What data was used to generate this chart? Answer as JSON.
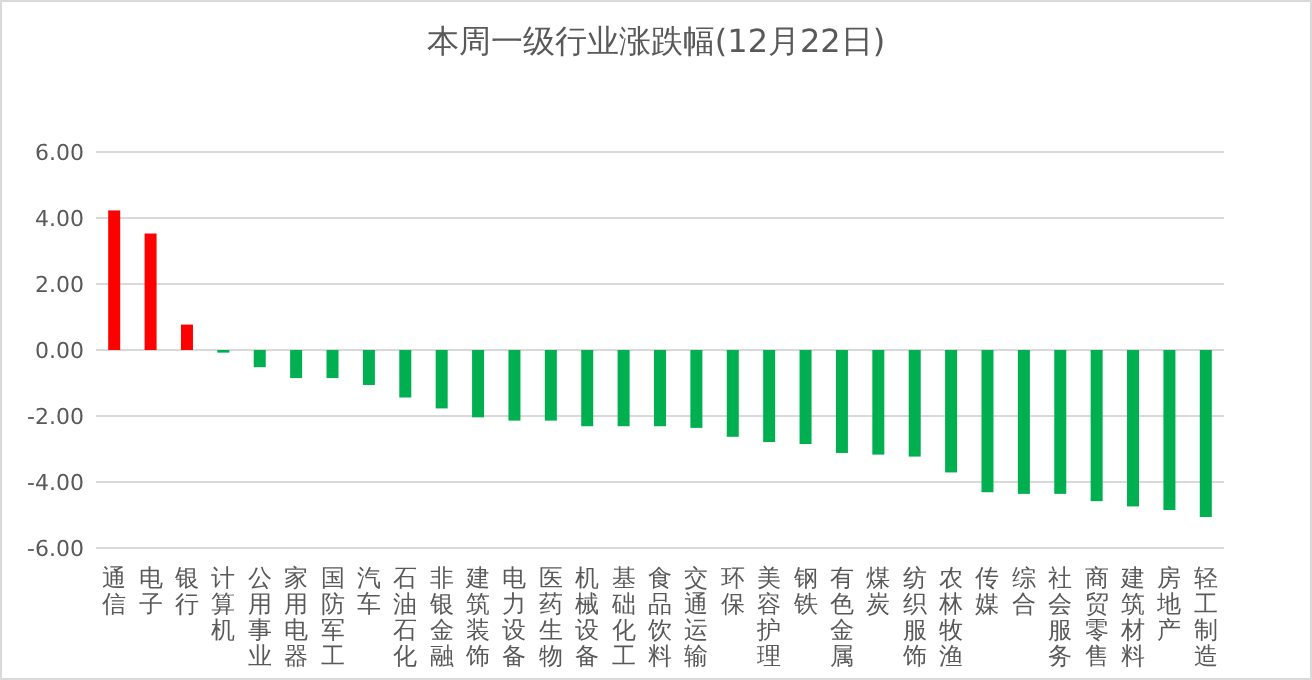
{
  "chart_data": {
    "type": "bar",
    "title": "本周一级行业涨跌幅(12月22日)",
    "categories": [
      "通信",
      "电子",
      "银行",
      "计算机",
      "公用事业",
      "家用电器",
      "国防军工",
      "汽车",
      "石油石化",
      "非银金融",
      "建筑装饰",
      "电力设备",
      "医药生物",
      "机械设备",
      "基础化工",
      "食品饮料",
      "交通运输",
      "环保",
      "美容护理",
      "钢铁",
      "有色金属",
      "煤炭",
      "纺织服饰",
      "农林牧渔",
      "传媒",
      "综合",
      "社会服务",
      "商贸零售",
      "建筑材料",
      "房地产",
      "轻工制造"
    ],
    "values": [
      4.23,
      3.53,
      0.77,
      -0.08,
      -0.52,
      -0.85,
      -0.85,
      -1.06,
      -1.44,
      -1.77,
      -2.04,
      -2.14,
      -2.14,
      -2.31,
      -2.31,
      -2.31,
      -2.36,
      -2.63,
      -2.79,
      -2.85,
      -3.12,
      -3.17,
      -3.23,
      -3.71,
      -4.31,
      -4.36,
      -4.36,
      -4.58,
      -4.74,
      -4.85,
      -5.06
    ],
    "colors": [
      "#ff0000",
      "#ff0000",
      "#ff0000",
      "#00b050",
      "#00b050",
      "#00b050",
      "#00b050",
      "#00b050",
      "#00b050",
      "#00b050",
      "#00b050",
      "#00b050",
      "#00b050",
      "#00b050",
      "#00b050",
      "#00b050",
      "#00b050",
      "#00b050",
      "#00b050",
      "#00b050",
      "#00b050",
      "#00b050",
      "#00b050",
      "#00b050",
      "#00b050",
      "#00b050",
      "#00b050",
      "#00b050",
      "#00b050",
      "#00b050",
      "#00b050"
    ],
    "ylim": [
      -6,
      6
    ],
    "yticks": [
      {
        "value": -6,
        "label": "-6.00"
      },
      {
        "value": -4,
        "label": "-4.00"
      },
      {
        "value": -2,
        "label": "-2.00"
      },
      {
        "value": 0,
        "label": "0.00"
      },
      {
        "value": 2,
        "label": "2.00"
      },
      {
        "value": 4,
        "label": "4.00"
      },
      {
        "value": 6,
        "label": "6.00"
      }
    ],
    "grid": "y"
  }
}
